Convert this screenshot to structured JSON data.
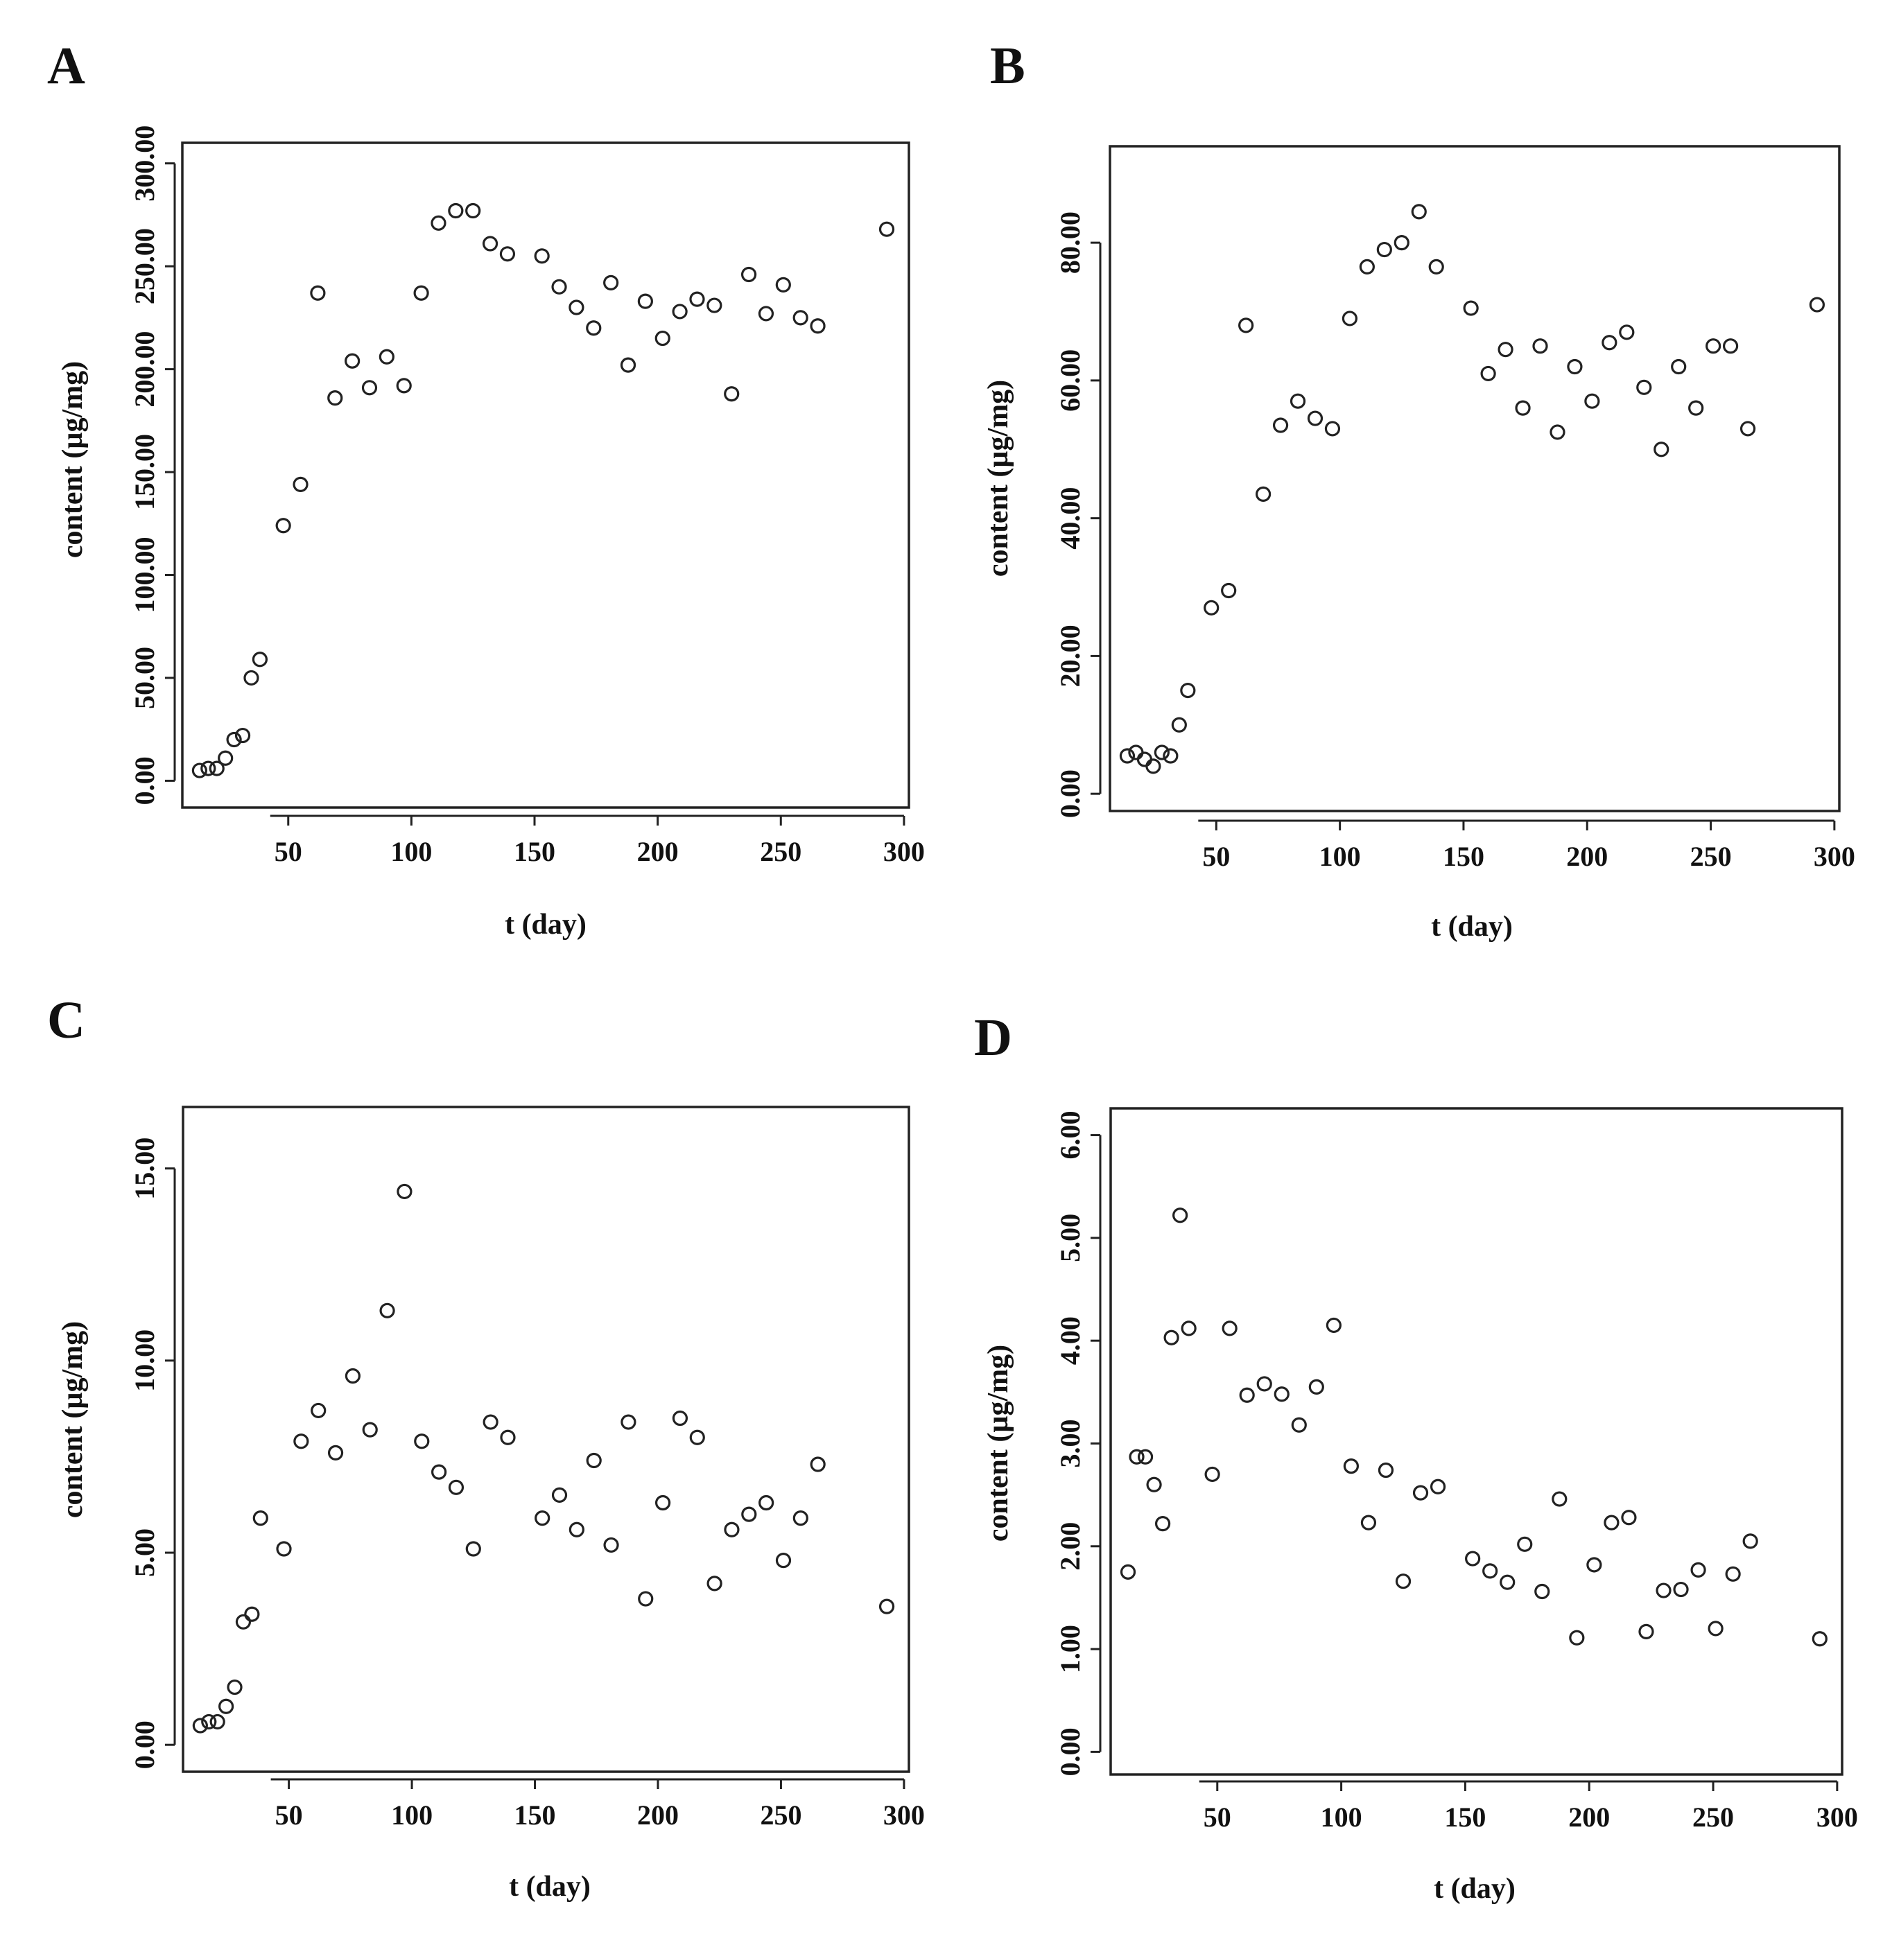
{
  "chart_data": [
    {
      "panel": "A",
      "type": "scatter",
      "xlabel": "t (day)",
      "ylabel": "content (µg/mg)",
      "xticks": [
        "50",
        "100",
        "150",
        "200",
        "250",
        "300"
      ],
      "yticks": [
        "0.00",
        "50.00",
        "100.00",
        "150.00",
        "200.00",
        "250.00",
        "300.00"
      ],
      "xlim": [
        7,
        302
      ],
      "ylim": [
        -13,
        310
      ],
      "x": [
        14,
        17.5,
        21,
        24.5,
        28,
        31.5,
        35,
        38.5,
        48,
        55,
        62,
        69,
        76,
        83,
        90,
        97,
        104,
        111,
        118,
        125,
        132,
        139,
        153,
        160,
        167,
        174,
        181,
        188,
        195,
        202,
        209,
        216,
        223,
        230,
        237,
        244,
        251,
        258,
        265,
        293
      ],
      "y": [
        5,
        6,
        6,
        11,
        20,
        22,
        50,
        59,
        124,
        144,
        237,
        186,
        204,
        191,
        206,
        192,
        237,
        271,
        277,
        277,
        261,
        256,
        255,
        240,
        230,
        220,
        242,
        202,
        233,
        215,
        228,
        234,
        231,
        188,
        246,
        227,
        241,
        225,
        221,
        268
      ]
    },
    {
      "panel": "B",
      "type": "scatter",
      "xlabel": "t (day)",
      "ylabel": "content (µg/mg)",
      "xticks": [
        "50",
        "100",
        "150",
        "200",
        "250",
        "300"
      ],
      "yticks": [
        "0.00",
        "20.00",
        "40.00",
        "60.00",
        "80.00"
      ],
      "xlim": [
        7,
        302
      ],
      "ylim": [
        -2.5,
        94
      ],
      "x": [
        14,
        17.5,
        21,
        24.5,
        28,
        31.5,
        35,
        38.5,
        48,
        55,
        62,
        69,
        76,
        83,
        90,
        97,
        104,
        111,
        118,
        125,
        132,
        139,
        153,
        160,
        167,
        174,
        181,
        188,
        195,
        202,
        209,
        216,
        223,
        230,
        237,
        244,
        251,
        258,
        265,
        293
      ],
      "y": [
        5.5,
        6,
        5,
        4,
        6,
        5.5,
        10,
        15,
        27,
        29.5,
        68,
        43.5,
        53.5,
        57,
        54.5,
        53,
        69,
        76.5,
        79,
        80,
        84.5,
        76.5,
        70.5,
        61,
        64.5,
        56,
        65,
        52.5,
        62,
        57,
        65.5,
        67,
        59,
        50,
        62,
        56,
        65,
        65,
        53,
        71
      ]
    },
    {
      "panel": "C",
      "type": "scatter",
      "xlabel": "t (day)",
      "ylabel": "content (µg/mg)",
      "xticks": [
        "50",
        "100",
        "150",
        "200",
        "250",
        "300"
      ],
      "yticks": [
        "0.00",
        "5.00",
        "10.00",
        "15.00"
      ],
      "xlim": [
        7,
        302
      ],
      "ylim": [
        -0.7,
        16.6
      ],
      "x": [
        14,
        17.5,
        21,
        24.5,
        28,
        31.5,
        35,
        38.5,
        48,
        55,
        62,
        69,
        76,
        83,
        90,
        97,
        104,
        111,
        118,
        125,
        132,
        139,
        153,
        160,
        167,
        174,
        181,
        188,
        195,
        202,
        209,
        216,
        223,
        230,
        237,
        244,
        251,
        258,
        265,
        293
      ],
      "y": [
        0.5,
        0.6,
        0.6,
        1.0,
        1.5,
        3.2,
        3.4,
        5.9,
        5.1,
        7.9,
        8.7,
        7.6,
        9.6,
        8.2,
        11.3,
        14.4,
        7.9,
        7.1,
        6.7,
        5.1,
        8.4,
        8.0,
        5.9,
        6.5,
        5.6,
        7.4,
        5.2,
        8.4,
        3.8,
        6.3,
        8.5,
        8.0,
        4.2,
        5.6,
        6.0,
        6.3,
        4.8,
        5.9,
        7.3,
        3.6
      ]
    },
    {
      "panel": "D",
      "type": "scatter",
      "xlabel": "t (day)",
      "ylabel": "content (µg/mg)",
      "xticks": [
        "50",
        "100",
        "150",
        "200",
        "250",
        "300"
      ],
      "yticks": [
        "0.00",
        "1.00",
        "2.00",
        "3.00",
        "4.00",
        "5.00",
        "6.00"
      ],
      "xlim": [
        7,
        302
      ],
      "ylim": [
        -0.22,
        6.26
      ],
      "x": [
        14,
        17.5,
        21,
        24.5,
        28,
        31.5,
        35,
        38.5,
        48,
        55,
        62,
        69,
        76,
        83,
        90,
        97,
        104,
        111,
        118,
        125,
        132,
        139,
        153,
        160,
        167,
        174,
        181,
        188,
        195,
        202,
        209,
        216,
        223,
        230,
        237,
        244,
        251,
        258,
        265,
        293
      ],
      "y": [
        1.75,
        2.87,
        2.87,
        2.6,
        2.22,
        4.03,
        5.22,
        4.12,
        2.7,
        4.12,
        3.47,
        3.58,
        3.48,
        3.18,
        3.55,
        4.15,
        2.78,
        2.23,
        2.74,
        1.66,
        2.52,
        2.58,
        1.88,
        1.76,
        1.65,
        2.02,
        1.56,
        2.46,
        1.11,
        1.82,
        2.23,
        2.28,
        1.17,
        1.57,
        1.58,
        1.77,
        1.2,
        1.73,
        2.05,
        1.1
      ]
    }
  ]
}
